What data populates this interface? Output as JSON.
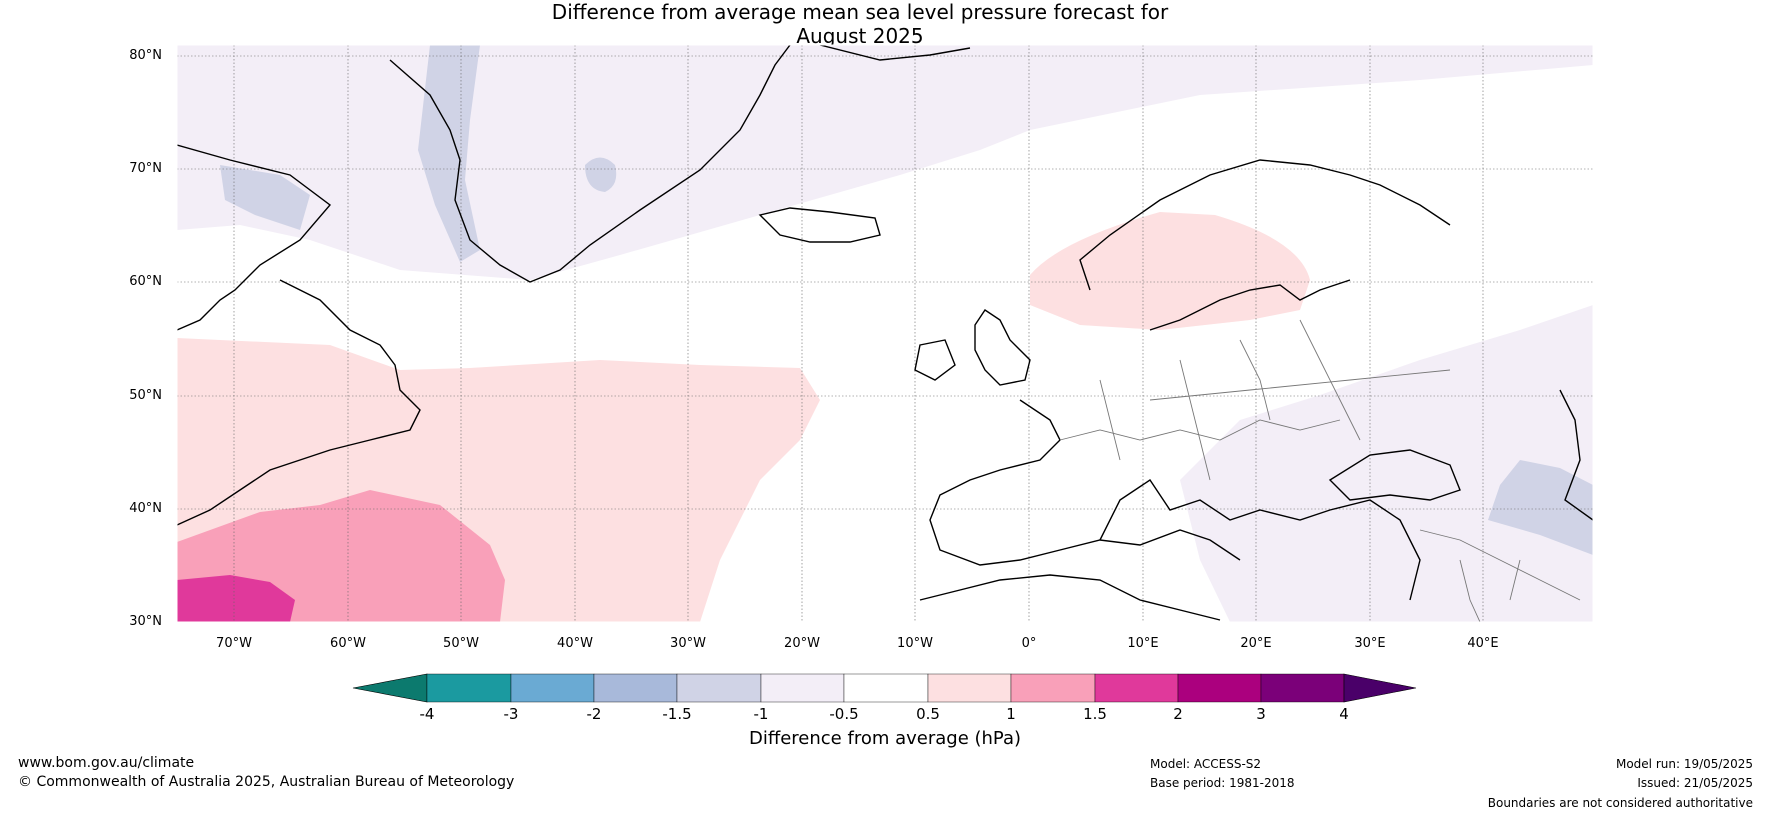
{
  "title": {
    "line1": "Difference from average mean sea level pressure forecast for",
    "line2": "August 2025"
  },
  "axes": {
    "lat_labels": [
      "80°N",
      "70°N",
      "60°N",
      "50°N",
      "40°N",
      "30°N"
    ],
    "lon_labels": [
      "70°W",
      "60°W",
      "50°W",
      "40°W",
      "30°W",
      "20°W",
      "10°W",
      "0°",
      "10°E",
      "20°E",
      "30°E",
      "40°E"
    ]
  },
  "colorbar": {
    "title": "Difference from average (hPa)",
    "ticks": [
      "-4",
      "-3",
      "-2",
      "-1.5",
      "-1",
      "-0.5",
      "0.5",
      "1",
      "1.5",
      "2",
      "3",
      "4"
    ],
    "colors": [
      "#0c7a6e",
      "#1b9aa0",
      "#6aaad3",
      "#a8b9da",
      "#d0d3e6",
      "#f3eef7",
      "#ffffff",
      "#fde0e1",
      "#f9a0b9",
      "#e0399b",
      "#ab007e",
      "#7b0079",
      "#4a0069"
    ]
  },
  "map_colors": {
    "neg_weak": "#f3eef7",
    "neg_mid": "#d0d3e6",
    "pos_weak": "#fde0e1",
    "pos_mid": "#f9a0b9",
    "pos_strong": "#e0399b"
  },
  "footer": {
    "website": "www.bom.gov.au/climate",
    "copyright": "© Commonwealth of Australia 2025, Australian Bureau of Meteorology",
    "model": "Model: ACCESS-S2",
    "base_period": "Base period: 1981-2018",
    "model_run": "Model run: 19/05/2025",
    "issued": "Issued: 21/05/2025",
    "disclaimer": "Boundaries are not considered authoritative"
  }
}
